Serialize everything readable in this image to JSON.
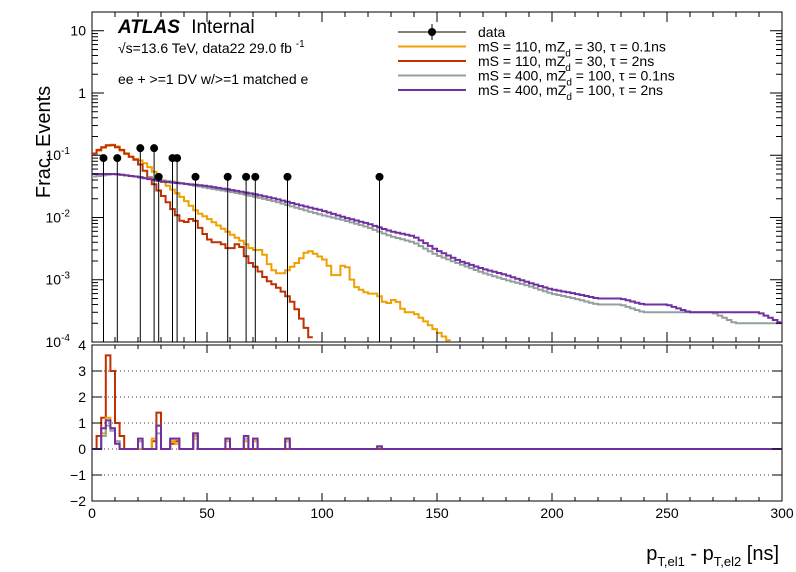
{
  "chart_data": {
    "type": "line",
    "atlas_label": "ATLAS",
    "atlas_status": "Internal",
    "energy_label": "√s=13.6 TeV, data22 29.0 fb",
    "energy_label_sup": "-1",
    "selection_label": "ee + >=1 DV w/>=1 matched e",
    "xlabel": {
      "main": "p",
      "sub1": "T,el1",
      "mid": " - p",
      "sub2": "T,el2",
      "unit": " [ns]"
    },
    "ylabel_top": "Frac. Events",
    "xlim": [
      0,
      300
    ],
    "ylim_top": [
      0.0001,
      20
    ],
    "yscale_top": "log",
    "ylim_bottom": [
      -2,
      4
    ],
    "x_ticks": [
      "0",
      "50",
      "100",
      "150",
      "200",
      "250",
      "300"
    ],
    "y_ticks_top": [
      {
        "base": "10",
        "exp": "-4",
        "v": 0.0001
      },
      {
        "base": "10",
        "exp": "-3",
        "v": 0.001
      },
      {
        "base": "10",
        "exp": "-2",
        "v": 0.01
      },
      {
        "base": "10",
        "exp": "-1",
        "v": 0.1
      },
      {
        "base": "1",
        "exp": "",
        "v": 1
      },
      {
        "base": "10",
        "exp": "",
        "v": 10
      }
    ],
    "y_ticks_bottom": [
      "−2",
      "−1",
      "0",
      "1",
      "2",
      "3",
      "4"
    ],
    "bin_width": 2,
    "data": {
      "name": "data",
      "color": "#000000",
      "x": [
        5,
        11,
        21,
        27,
        29,
        35,
        37,
        45,
        59,
        67,
        71,
        85,
        125
      ],
      "y": [
        0.09,
        0.09,
        0.13,
        0.13,
        0.045,
        0.09,
        0.09,
        0.045,
        0.045,
        0.045,
        0.045,
        0.045,
        0.045
      ]
    },
    "series": [
      {
        "legend_parts": [
          "mS = 110, mZ",
          "d",
          " = 30, τ = 0.1ns"
        ],
        "color": "#f0a000",
        "points": [
          [
            0,
            0.1
          ],
          [
            6,
            0.14
          ],
          [
            10,
            0.15
          ],
          [
            14,
            0.11
          ],
          [
            18,
            0.09
          ],
          [
            22,
            0.08
          ],
          [
            26,
            0.06
          ],
          [
            30,
            0.04
          ],
          [
            34,
            0.03
          ],
          [
            40,
            0.02
          ],
          [
            46,
            0.012
          ],
          [
            50,
            0.01
          ],
          [
            56,
            0.007
          ],
          [
            62,
            0.005
          ],
          [
            66,
            0.004
          ],
          [
            70,
            0.003
          ],
          [
            74,
            0.003
          ],
          [
            78,
            0.0015
          ],
          [
            82,
            0.0012
          ],
          [
            86,
            0.0015
          ],
          [
            90,
            0.002
          ],
          [
            94,
            0.003
          ],
          [
            98,
            0.0025
          ],
          [
            102,
            0.002
          ],
          [
            106,
            0.001
          ],
          [
            110,
            0.002
          ],
          [
            114,
            0.0008
          ],
          [
            120,
            0.0006
          ],
          [
            124,
            0.0006
          ],
          [
            128,
            0.0004
          ],
          [
            132,
            0.0005
          ],
          [
            136,
            0.0003
          ],
          [
            140,
            0.0003
          ],
          [
            146,
            0.0002
          ],
          [
            150,
            0.00015
          ],
          [
            156,
            0.0001
          ]
        ]
      },
      {
        "legend_parts": [
          "mS = 110, mZ",
          "d",
          " = 30, τ = 2ns"
        ],
        "color": "#c03000",
        "points": [
          [
            0,
            0.1
          ],
          [
            4,
            0.13
          ],
          [
            8,
            0.15
          ],
          [
            12,
            0.13
          ],
          [
            16,
            0.1
          ],
          [
            20,
            0.08
          ],
          [
            24,
            0.05
          ],
          [
            28,
            0.03
          ],
          [
            32,
            0.02
          ],
          [
            36,
            0.012
          ],
          [
            40,
            0.008
          ],
          [
            44,
            0.01
          ],
          [
            48,
            0.006
          ],
          [
            52,
            0.004
          ],
          [
            56,
            0.004
          ],
          [
            60,
            0.003
          ],
          [
            64,
            0.004
          ],
          [
            68,
            0.002
          ],
          [
            72,
            0.0015
          ],
          [
            76,
            0.001
          ],
          [
            80,
            0.0008
          ],
          [
            84,
            0.0006
          ],
          [
            88,
            0.0004
          ],
          [
            92,
            0.0002
          ],
          [
            96,
            0.0001
          ]
        ]
      },
      {
        "legend_parts": [
          "mS = 400, mZ",
          "d",
          " = 100, τ = 0.1ns"
        ],
        "color": "#94a0a0",
        "points": [
          [
            0,
            0.045
          ],
          [
            10,
            0.05
          ],
          [
            20,
            0.045
          ],
          [
            30,
            0.04
          ],
          [
            40,
            0.035
          ],
          [
            50,
            0.03
          ],
          [
            60,
            0.026
          ],
          [
            70,
            0.022
          ],
          [
            80,
            0.018
          ],
          [
            90,
            0.014
          ],
          [
            100,
            0.011
          ],
          [
            110,
            0.009
          ],
          [
            120,
            0.007
          ],
          [
            130,
            0.005
          ],
          [
            140,
            0.004
          ],
          [
            150,
            0.0025
          ],
          [
            160,
            0.0018
          ],
          [
            170,
            0.0013
          ],
          [
            180,
            0.001
          ],
          [
            190,
            0.0008
          ],
          [
            200,
            0.0006
          ],
          [
            210,
            0.0005
          ],
          [
            220,
            0.0004
          ],
          [
            230,
            0.0004
          ],
          [
            240,
            0.0003
          ],
          [
            250,
            0.0003
          ],
          [
            260,
            0.0003
          ],
          [
            270,
            0.0003
          ],
          [
            280,
            0.0002
          ],
          [
            290,
            0.0002
          ],
          [
            300,
            0.0002
          ]
        ]
      },
      {
        "legend_parts": [
          "mS = 400, mZ",
          "d",
          " = 100, τ = 2ns"
        ],
        "color": "#7030a0",
        "points": [
          [
            0,
            0.05
          ],
          [
            10,
            0.05
          ],
          [
            20,
            0.045
          ],
          [
            30,
            0.038
          ],
          [
            40,
            0.035
          ],
          [
            50,
            0.032
          ],
          [
            60,
            0.028
          ],
          [
            70,
            0.024
          ],
          [
            80,
            0.02
          ],
          [
            90,
            0.016
          ],
          [
            100,
            0.013
          ],
          [
            110,
            0.01
          ],
          [
            120,
            0.008
          ],
          [
            130,
            0.006
          ],
          [
            140,
            0.005
          ],
          [
            150,
            0.003
          ],
          [
            160,
            0.002
          ],
          [
            170,
            0.0015
          ],
          [
            180,
            0.0012
          ],
          [
            190,
            0.0009
          ],
          [
            200,
            0.0007
          ],
          [
            210,
            0.0006
          ],
          [
            220,
            0.0005
          ],
          [
            230,
            0.0005
          ],
          [
            240,
            0.0004
          ],
          [
            250,
            0.0004
          ],
          [
            260,
            0.0003
          ],
          [
            270,
            0.0003
          ],
          [
            280,
            0.0003
          ],
          [
            290,
            0.0003
          ],
          [
            300,
            0.0002
          ]
        ]
      }
    ],
    "ratio": {
      "series": [
        {
          "color": "#c03000",
          "points": [
            [
              0,
              0
            ],
            [
              2,
              0.5
            ],
            [
              4,
              1.2
            ],
            [
              6,
              3.6
            ],
            [
              8,
              3.0
            ],
            [
              10,
              1.0
            ],
            [
              12,
              0.5
            ],
            [
              14,
              0
            ],
            [
              20,
              0.3
            ],
            [
              22,
              0
            ],
            [
              26,
              0.3
            ],
            [
              28,
              1.4
            ],
            [
              30,
              0
            ],
            [
              34,
              0.2
            ],
            [
              36,
              0.3
            ],
            [
              38,
              0
            ],
            [
              44,
              0.6
            ],
            [
              46,
              0
            ]
          ]
        },
        {
          "color": "#f0a000",
          "points": [
            [
              0,
              0
            ],
            [
              4,
              0.6
            ],
            [
              6,
              1.2
            ],
            [
              8,
              0.8
            ],
            [
              10,
              0.3
            ],
            [
              12,
              0
            ],
            [
              26,
              0.4
            ],
            [
              28,
              0.9
            ],
            [
              30,
              0
            ],
            [
              34,
              0.3
            ],
            [
              36,
              0.2
            ],
            [
              38,
              0
            ],
            [
              44,
              0.4
            ],
            [
              46,
              0
            ],
            [
              58,
              0.3
            ],
            [
              60,
              0
            ],
            [
              66,
              0.3
            ],
            [
              68,
              0
            ],
            [
              70,
              0.3
            ],
            [
              72,
              0
            ],
            [
              84,
              0.3
            ],
            [
              86,
              0
            ],
            [
              124,
              0.1
            ],
            [
              126,
              0
            ]
          ]
        },
        {
          "color": "#94a0a0",
          "points": [
            [
              0,
              0
            ],
            [
              4,
              0.5
            ],
            [
              6,
              0.9
            ],
            [
              8,
              0.7
            ],
            [
              10,
              0.3
            ],
            [
              12,
              0
            ],
            [
              20,
              0.3
            ],
            [
              22,
              0
            ],
            [
              28,
              0.6
            ],
            [
              30,
              0
            ],
            [
              34,
              0.4
            ],
            [
              38,
              0
            ],
            [
              44,
              0.5
            ],
            [
              46,
              0
            ],
            [
              58,
              0.4
            ],
            [
              60,
              0
            ],
            [
              66,
              0.4
            ],
            [
              68,
              0
            ],
            [
              70,
              0.4
            ],
            [
              72,
              0
            ],
            [
              84,
              0.4
            ],
            [
              86,
              0
            ],
            [
              124,
              0.1
            ],
            [
              126,
              0
            ]
          ]
        },
        {
          "color": "#7030a0",
          "points": [
            [
              0,
              0
            ],
            [
              4,
              0.8
            ],
            [
              6,
              1.1
            ],
            [
              8,
              0.8
            ],
            [
              10,
              0.2
            ],
            [
              12,
              0
            ],
            [
              20,
              0.4
            ],
            [
              22,
              0
            ],
            [
              28,
              0.9
            ],
            [
              30,
              0
            ],
            [
              34,
              0.4
            ],
            [
              38,
              0
            ],
            [
              44,
              0.6
            ],
            [
              46,
              0
            ],
            [
              58,
              0.4
            ],
            [
              60,
              0
            ],
            [
              66,
              0.5
            ],
            [
              68,
              0
            ],
            [
              70,
              0.4
            ],
            [
              72,
              0
            ],
            [
              84,
              0.4
            ],
            [
              86,
              0
            ],
            [
              124,
              0.1
            ],
            [
              126,
              0
            ]
          ]
        }
      ]
    }
  }
}
